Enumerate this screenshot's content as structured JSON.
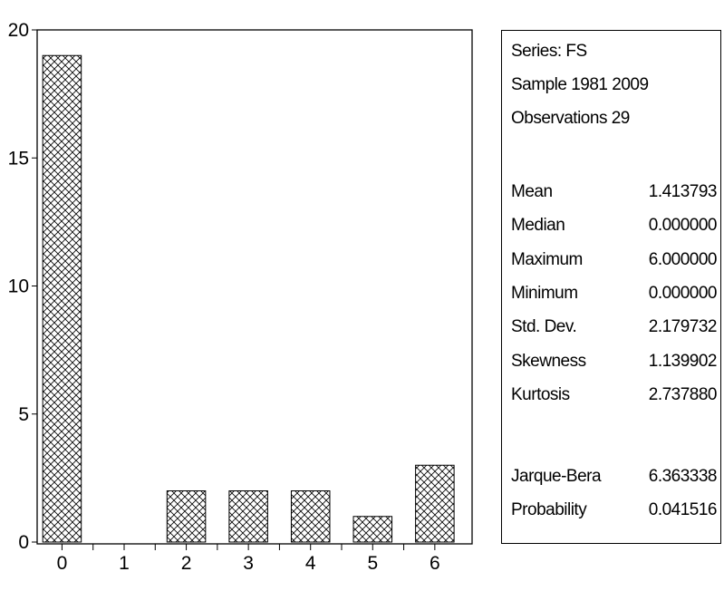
{
  "chart_data": {
    "type": "bar",
    "x": [
      0,
      2,
      3,
      4,
      5,
      6
    ],
    "values": [
      19,
      2,
      2,
      2,
      1,
      3
    ],
    "xlim": [
      -0.4,
      6.6
    ],
    "ylim": [
      0,
      20
    ],
    "yticks": [
      "0",
      "5",
      "10",
      "15",
      "20"
    ],
    "xticks": [
      "0",
      "1",
      "2",
      "3",
      "4",
      "5",
      "6"
    ],
    "fill_pattern": "crosshatch",
    "title": "",
    "xlabel": "",
    "ylabel": ""
  },
  "stats": {
    "series": "Series: FS",
    "sample": "Sample 1981 2009",
    "observations": "Observations 29",
    "rows": [
      {
        "label": "Mean",
        "value": "1.413793"
      },
      {
        "label": "Median",
        "value": "0.000000"
      },
      {
        "label": "Maximum",
        "value": "6.000000"
      },
      {
        "label": "Minimum",
        "value": "0.000000"
      },
      {
        "label": "Std. Dev.",
        "value": "2.179732"
      },
      {
        "label": "Skewness",
        "value": "1.139902"
      },
      {
        "label": "Kurtosis",
        "value": "2.737880"
      }
    ],
    "tests": [
      {
        "label": "Jarque-Bera",
        "value": "6.363338"
      },
      {
        "label": "Probability",
        "value": "0.041516"
      }
    ]
  }
}
